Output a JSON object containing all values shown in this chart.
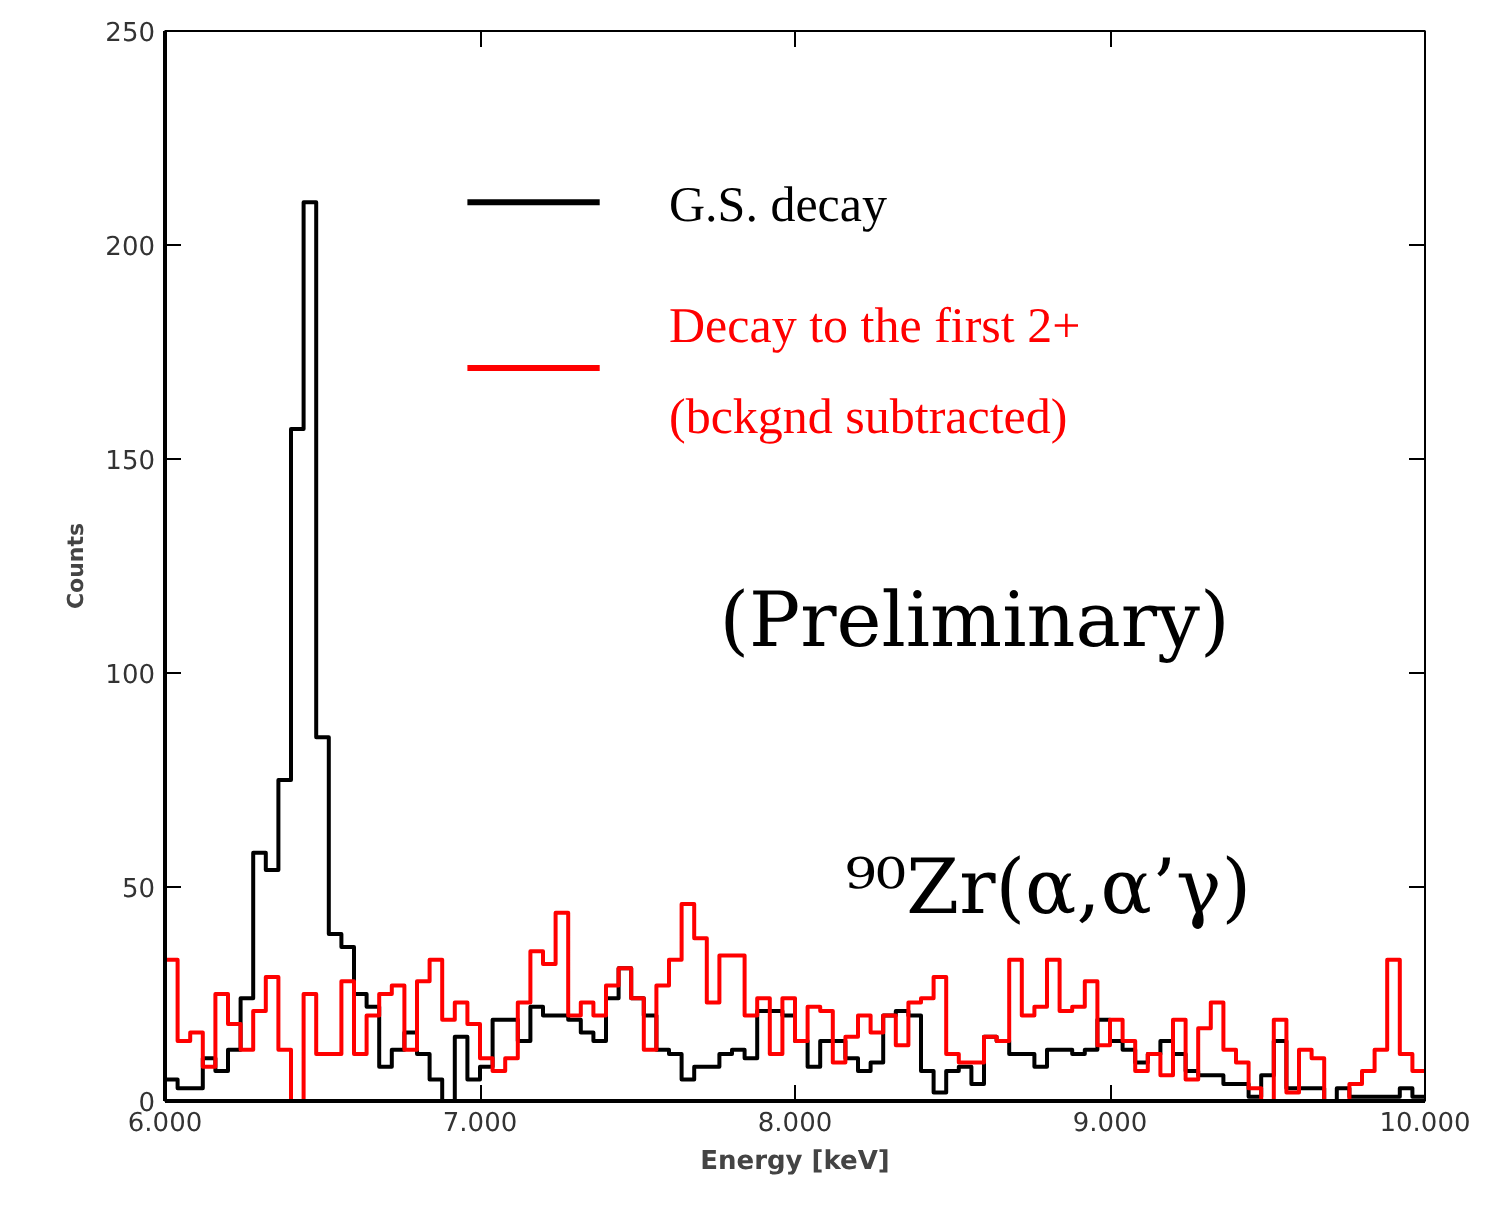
{
  "chart_data": {
    "type": "histogram",
    "xlabel": "Energy [keV]",
    "ylabel": "Counts",
    "bins": [
      6000,
      6040,
      6080,
      6120,
      6160,
      6200,
      6240,
      6280,
      6320,
      6360,
      6400,
      6440,
      6480,
      6520,
      6560,
      6600,
      6640,
      6680,
      6720,
      6760,
      6800,
      6840,
      6880,
      6920,
      6960,
      7000,
      7040,
      7080,
      7120,
      7160,
      7200,
      7240,
      7280,
      7320,
      7360,
      7400,
      7440,
      7480,
      7520,
      7560,
      7600,
      7640,
      7680,
      7720,
      7760,
      7800,
      7840,
      7880,
      7920,
      7960,
      8000,
      8040,
      8080,
      8120,
      8160,
      8200,
      8240,
      8280,
      8320,
      8360,
      8400,
      8440,
      8480,
      8520,
      8560,
      8600,
      8640,
      8680,
      8720,
      8760,
      8800,
      8840,
      8880,
      8920,
      8960,
      9000,
      9040,
      9080,
      9120,
      9160,
      9200,
      9240,
      9280,
      9320,
      9360,
      9400,
      9440,
      9480,
      9520,
      9560,
      9600,
      9640,
      9680,
      9720,
      9760,
      9800,
      9840,
      9880,
      9920,
      9960,
      10000
    ],
    "series": [
      {
        "name": "G.S. decay",
        "color": "#000000",
        "values": [
          5,
          3,
          3,
          10,
          7,
          12,
          24,
          58,
          54,
          75,
          157,
          210,
          85,
          39,
          36,
          25,
          22,
          8,
          12,
          16,
          11,
          5,
          0,
          15,
          5,
          8,
          19,
          19,
          14,
          22,
          20,
          20,
          19,
          16,
          14,
          24,
          31,
          24,
          20,
          12,
          11,
          5,
          8,
          8,
          11,
          12,
          10,
          21,
          21,
          20,
          14,
          8,
          14,
          14,
          10,
          7,
          9,
          20,
          21,
          20,
          7,
          2,
          7,
          8,
          4,
          15,
          14,
          11,
          11,
          8,
          12,
          12,
          11,
          12,
          19,
          14,
          12,
          9,
          11,
          14,
          11,
          7,
          6,
          6,
          4,
          4,
          1,
          6,
          14,
          3,
          3,
          3,
          0,
          3,
          1,
          1,
          1,
          1,
          3,
          1
        ]
      },
      {
        "name": "Decay to the first 2+\n(bckgnd subtracted)",
        "color": "#ff0000",
        "values": [
          33,
          14,
          16,
          8,
          25,
          18,
          12,
          21,
          29,
          12,
          0,
          25,
          11,
          11,
          28,
          11,
          20,
          25,
          27,
          12,
          28,
          33,
          19,
          23,
          18,
          10,
          7,
          10,
          23,
          35,
          32,
          44,
          20,
          23,
          20,
          27,
          31,
          24,
          12,
          27,
          33,
          46,
          38,
          23,
          34,
          34,
          20,
          24,
          11,
          24,
          14,
          22,
          21,
          9,
          15,
          20,
          16,
          20,
          13,
          23,
          24,
          29,
          11,
          9,
          9,
          15,
          14,
          33,
          20,
          22,
          33,
          21,
          22,
          28,
          13,
          19,
          14,
          7,
          11,
          6,
          19,
          5,
          17,
          23,
          12,
          9,
          3,
          0,
          19,
          2,
          12,
          10,
          0,
          0,
          4,
          7,
          12,
          33,
          11,
          7
        ]
      }
    ],
    "xlim": [
      6000,
      10000
    ],
    "ylim": [
      0,
      250
    ],
    "xticks": [
      {
        "value": 6000,
        "label": "6.000"
      },
      {
        "value": 7000,
        "label": "7.000"
      },
      {
        "value": 8000,
        "label": "8.000"
      },
      {
        "value": 9000,
        "label": "9.000"
      },
      {
        "value": 10000,
        "label": "10.000"
      }
    ],
    "yticks": [
      0,
      50,
      100,
      150,
      200,
      250
    ],
    "grid": false,
    "legend": "top right",
    "annotations": [
      "(Preliminary)",
      "⁹⁰Zr(α,α’γ)"
    ]
  }
}
